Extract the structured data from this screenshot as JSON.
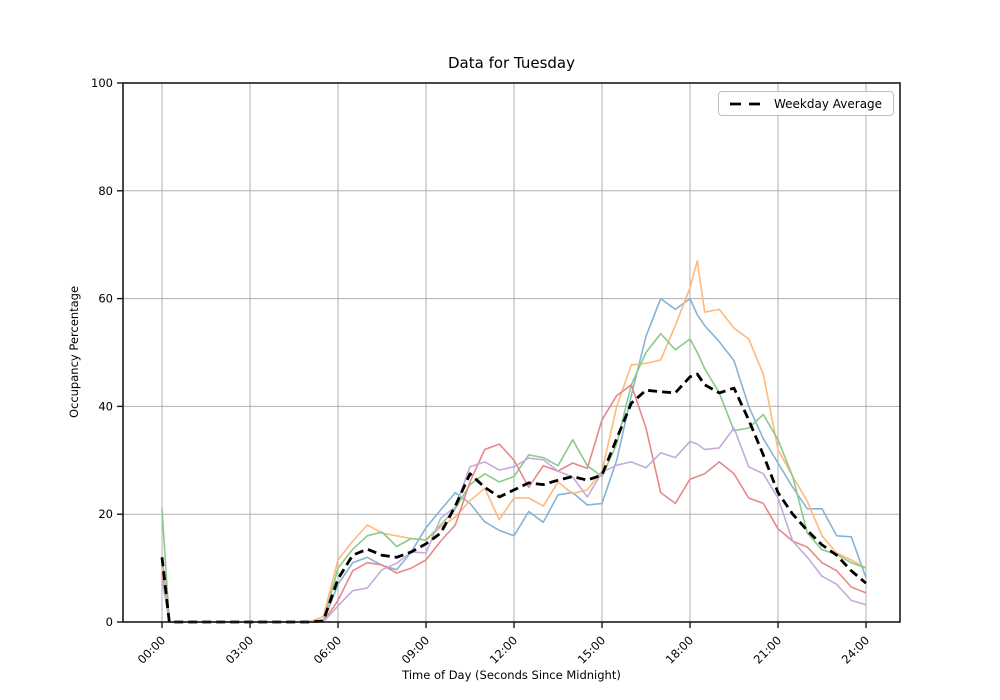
{
  "figure": {
    "background": "#ffffff"
  },
  "chart_data": {
    "type": "line",
    "title": "Data for Tuesday",
    "xlabel": "Time of Day (Seconds Since Midnight)",
    "ylabel": "Occupancy Percentage",
    "x_tick_labels": [
      "00:00",
      "03:00",
      "06:00",
      "09:00",
      "12:00",
      "15:00",
      "18:00",
      "21:00",
      "24:00"
    ],
    "x_tick_hours": [
      0,
      3,
      6,
      9,
      12,
      15,
      18,
      21,
      24
    ],
    "y_ticks": [
      0,
      20,
      40,
      60,
      80,
      100
    ],
    "ylim": [
      0,
      100
    ],
    "grid": true,
    "grid_color": "#b0b0b0",
    "spine_color": "#1a1a1a",
    "legend": {
      "position": "upper right",
      "entries": [
        {
          "label": "Weekday Average",
          "color": "#000000",
          "dashed": true
        }
      ]
    },
    "x_hours": [
      0,
      0.25,
      0.5,
      1,
      1.5,
      2,
      2.5,
      3,
      3.5,
      4,
      4.5,
      5,
      5.5,
      6,
      6.5,
      7,
      7.5,
      8,
      8.5,
      9,
      9.5,
      10,
      10.5,
      11,
      11.5,
      12,
      12.5,
      13,
      13.5,
      14,
      14.5,
      15,
      15.5,
      16,
      16.5,
      17,
      17.5,
      18,
      18.25,
      18.5,
      19,
      19.5,
      20,
      20.5,
      21,
      21.5,
      22,
      22.5,
      23,
      23.5,
      24
    ],
    "series": [
      {
        "name": "day-series-1",
        "color": "#85b4d5",
        "line_width": 1.6,
        "dashed": false,
        "values": [
          12,
          0,
          0,
          0,
          0,
          0,
          0,
          0,
          0,
          0,
          0,
          0,
          0,
          7,
          11,
          12,
          10.5,
          9.7,
          13,
          17.5,
          20.8,
          24,
          22,
          18.6,
          17,
          16,
          20.5,
          18.5,
          23.6,
          24,
          21.7,
          22,
          30,
          42,
          53,
          60,
          58,
          60,
          57,
          55,
          52,
          48.5,
          40,
          34,
          29.5,
          25,
          21,
          21,
          16,
          15.8,
          8.2
        ]
      },
      {
        "name": "day-series-2",
        "color": "#ffb97a",
        "line_width": 1.6,
        "dashed": false,
        "values": [
          10,
          0,
          0,
          0,
          0,
          0,
          0,
          0,
          0,
          0,
          0,
          0,
          1,
          11.5,
          15,
          18,
          16.5,
          16,
          15.5,
          15.2,
          17.6,
          19.5,
          22.5,
          24.8,
          19,
          23,
          23,
          21.5,
          26,
          23.8,
          24.5,
          28,
          40,
          47.7,
          48,
          48.6,
          55,
          62,
          67,
          57.5,
          58,
          54.5,
          52.5,
          46,
          32,
          27,
          22.4,
          16,
          12.8,
          11.5,
          10
        ]
      },
      {
        "name": "day-series-3",
        "color": "#8bca8b",
        "line_width": 1.6,
        "dashed": false,
        "values": [
          21,
          0,
          0,
          0,
          0,
          0,
          0,
          0,
          0,
          0,
          0,
          0,
          0,
          10,
          13.5,
          16,
          16.7,
          14,
          15.5,
          15.2,
          18,
          21,
          25.5,
          27.5,
          26,
          27,
          31,
          30.5,
          29,
          33.8,
          29,
          27,
          33,
          44,
          50,
          53.5,
          50.5,
          52.5,
          50,
          47,
          42.5,
          35.5,
          36,
          38.5,
          33.8,
          27,
          16.5,
          13.4,
          12.5,
          11,
          10
        ]
      },
      {
        "name": "day-series-4",
        "color": "#e88889",
        "line_width": 1.6,
        "dashed": false,
        "values": [
          9,
          0,
          0,
          0,
          0,
          0,
          0,
          0,
          0,
          0,
          0,
          0,
          0,
          4,
          9.5,
          11,
          10.6,
          9.1,
          10,
          11.5,
          15,
          18,
          26,
          32,
          33,
          30,
          25,
          29,
          28,
          29.5,
          28.5,
          37.5,
          42,
          44,
          36,
          24,
          22,
          26.5,
          27,
          27.5,
          29.7,
          27.5,
          23,
          22,
          17.3,
          15,
          13.9,
          11,
          9.5,
          6.5,
          5.4
        ]
      },
      {
        "name": "day-series-5",
        "color": "#c4abda",
        "line_width": 1.6,
        "dashed": false,
        "values": [
          8,
          0,
          0,
          0,
          0,
          0,
          0,
          0,
          0,
          0,
          0,
          0,
          0,
          3,
          5.8,
          6.3,
          9.7,
          10.9,
          13,
          12.8,
          19.3,
          21.3,
          28.8,
          29.7,
          28.2,
          28.8,
          30.4,
          30.1,
          28,
          26.9,
          23.2,
          27.8,
          29.1,
          29.7,
          28.6,
          31.4,
          30.5,
          33.5,
          33,
          32,
          32.3,
          36,
          28.8,
          27.5,
          23,
          15,
          12,
          8.5,
          7,
          4,
          3.2
        ]
      },
      {
        "name": "weekday-average",
        "label": "Weekday Average",
        "color": "#000000",
        "line_width": 2.8,
        "dashed": true,
        "values": [
          12,
          0,
          0,
          0,
          0,
          0,
          0,
          0,
          0,
          0,
          0,
          0,
          0.2,
          8,
          12.4,
          13.5,
          12.4,
          12,
          13,
          14.5,
          16.5,
          21.5,
          27.5,
          25,
          23.2,
          24.5,
          25.8,
          25.5,
          26.3,
          27,
          26.3,
          27.3,
          34,
          40.6,
          43,
          42.7,
          42.5,
          45.5,
          46,
          44,
          42.5,
          43.4,
          37.5,
          31,
          24,
          20,
          17,
          14.3,
          12.4,
          9.5,
          7.2
        ]
      }
    ]
  }
}
